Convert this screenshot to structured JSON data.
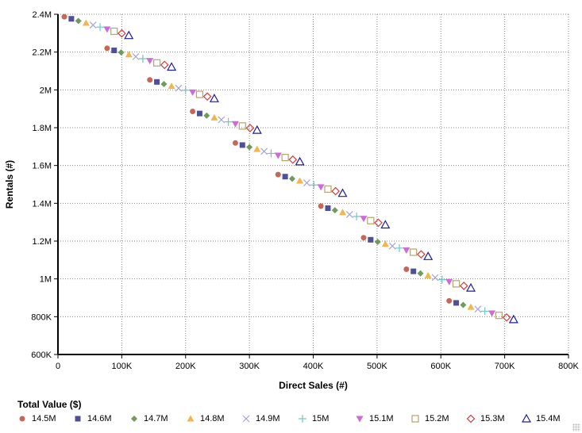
{
  "chart_data": {
    "type": "scatter",
    "xlabel": "Direct Sales (#)",
    "ylabel": "Rentals (#)",
    "units": "thousands",
    "xlim": [
      0,
      800
    ],
    "ylim": [
      600,
      2400
    ],
    "x_ticks": [
      0,
      100,
      200,
      300,
      400,
      500,
      600,
      700,
      800
    ],
    "x_tick_labels": [
      "0",
      "100K",
      "200K",
      "300K",
      "400K",
      "500K",
      "600K",
      "700K",
      "800K"
    ],
    "y_ticks": [
      600,
      800,
      1000,
      1200,
      1400,
      1600,
      1800,
      2000,
      2200,
      2400
    ],
    "y_tick_labels": [
      "600K",
      "800K",
      "1M",
      "1.2M",
      "1.4M",
      "1.6M",
      "1.8M",
      "2M",
      "2.2M",
      "2.4M"
    ],
    "grid": true,
    "legend_title": "Total Value ($)",
    "legend_placement": "bottom",
    "series": [
      {
        "name": "14.5M",
        "marker": "circle",
        "color": "#c7675a",
        "x": [
          10,
          77,
          144,
          211,
          278,
          345,
          412,
          479,
          546,
          613
        ],
        "y": [
          2387,
          2220,
          2053,
          1886,
          1719,
          1552,
          1385,
          1218,
          1051,
          884
        ]
      },
      {
        "name": "14.6M",
        "marker": "square",
        "color": "#4f5096",
        "x": [
          21,
          88,
          155,
          222,
          289,
          356,
          423,
          490,
          557,
          624
        ],
        "y": [
          2376,
          2209,
          2042,
          1875,
          1708,
          1541,
          1374,
          1207,
          1040,
          873
        ]
      },
      {
        "name": "14.7M",
        "marker": "diamond",
        "color": "#6f9c5c",
        "x": [
          32,
          99,
          166,
          233,
          300,
          367,
          434,
          501,
          568,
          635
        ],
        "y": [
          2365,
          2198,
          2031,
          1864,
          1697,
          1530,
          1363,
          1196,
          1029,
          862
        ]
      },
      {
        "name": "14.8M",
        "marker": "triangle",
        "color": "#f4b64c",
        "x": [
          44,
          111,
          178,
          245,
          312,
          379,
          446,
          513,
          580,
          647
        ],
        "y": [
          2354,
          2187,
          2020,
          1853,
          1686,
          1519,
          1352,
          1185,
          1018,
          851
        ]
      },
      {
        "name": "14.9M",
        "marker": "x",
        "color": "#a3a3d6",
        "x": [
          55,
          122,
          189,
          256,
          323,
          390,
          457,
          524,
          591,
          658
        ],
        "y": [
          2343,
          2176,
          2009,
          1842,
          1675,
          1508,
          1341,
          1174,
          1007,
          840
        ]
      },
      {
        "name": "15M",
        "marker": "plus",
        "color": "#72c6c6",
        "x": [
          66,
          133,
          200,
          267,
          334,
          401,
          468,
          535,
          602,
          669
        ],
        "y": [
          2332,
          2165,
          1998,
          1831,
          1664,
          1497,
          1330,
          1163,
          996,
          829
        ]
      },
      {
        "name": "15.1M",
        "marker": "triangle-down",
        "color": "#d06ad6",
        "x": [
          77,
          144,
          211,
          278,
          345,
          412,
          479,
          546,
          613,
          680
        ],
        "y": [
          2321,
          2154,
          1987,
          1820,
          1653,
          1486,
          1319,
          1152,
          985,
          818
        ]
      },
      {
        "name": "15.2M",
        "marker": "square-open",
        "color": "#b5a46c",
        "x": [
          88,
          155,
          222,
          289,
          356,
          423,
          490,
          557,
          624,
          691
        ],
        "y": [
          2310,
          2143,
          1976,
          1809,
          1642,
          1475,
          1308,
          1141,
          974,
          807
        ]
      },
      {
        "name": "15.3M",
        "marker": "diamond-open",
        "color": "#d03c3c",
        "x": [
          100,
          167,
          234,
          301,
          368,
          435,
          502,
          569,
          636,
          703
        ],
        "y": [
          2299,
          2132,
          1965,
          1798,
          1631,
          1464,
          1297,
          1130,
          963,
          796
        ]
      },
      {
        "name": "15.4M",
        "marker": "triangle-open",
        "color": "#1e1e9a",
        "x": [
          111,
          178,
          245,
          312,
          379,
          446,
          513,
          580,
          647,
          714
        ],
        "y": [
          2288,
          2121,
          1954,
          1787,
          1620,
          1453,
          1286,
          1119,
          952,
          785
        ]
      }
    ]
  }
}
